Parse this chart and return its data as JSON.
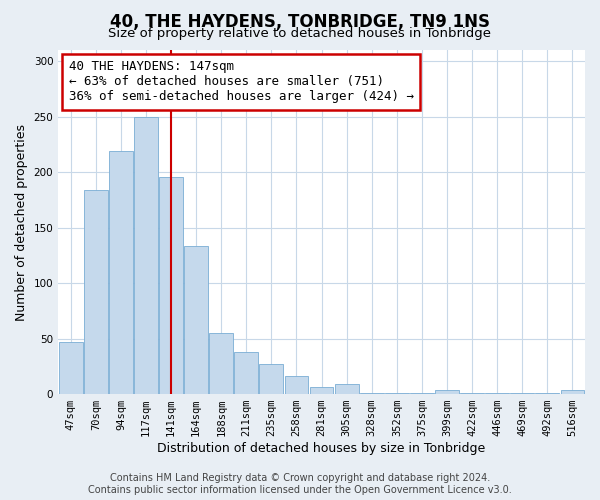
{
  "title": "40, THE HAYDENS, TONBRIDGE, TN9 1NS",
  "subtitle": "Size of property relative to detached houses in Tonbridge",
  "xlabel": "Distribution of detached houses by size in Tonbridge",
  "ylabel": "Number of detached properties",
  "bar_labels": [
    "47sqm",
    "70sqm",
    "94sqm",
    "117sqm",
    "141sqm",
    "164sqm",
    "188sqm",
    "211sqm",
    "235sqm",
    "258sqm",
    "281sqm",
    "305sqm",
    "328sqm",
    "352sqm",
    "375sqm",
    "399sqm",
    "422sqm",
    "446sqm",
    "469sqm",
    "492sqm",
    "516sqm"
  ],
  "bar_values": [
    47,
    184,
    219,
    250,
    196,
    133,
    55,
    38,
    27,
    16,
    6,
    9,
    1,
    1,
    1,
    4,
    1,
    1,
    1,
    1,
    4
  ],
  "bar_color": "#c5d9ec",
  "bar_edge_color": "#7aadd4",
  "redline_x": 4,
  "annotation_line1": "40 THE HAYDENS: 147sqm",
  "annotation_line2": "← 63% of detached houses are smaller (751)",
  "annotation_line3": "36% of semi-detached houses are larger (424) →",
  "annotation_box_color": "#ffffff",
  "annotation_border_color": "#cc0000",
  "ylim": [
    0,
    310
  ],
  "yticks": [
    0,
    50,
    100,
    150,
    200,
    250,
    300
  ],
  "footer_line1": "Contains HM Land Registry data © Crown copyright and database right 2024.",
  "footer_line2": "Contains public sector information licensed under the Open Government Licence v3.0.",
  "bg_color": "#e8eef4",
  "plot_bg_color": "#ffffff",
  "grid_color": "#c8d8e8",
  "title_fontsize": 12,
  "subtitle_fontsize": 9.5,
  "axis_label_fontsize": 9,
  "tick_fontsize": 7.5,
  "footer_fontsize": 7,
  "annotation_fontsize": 9
}
